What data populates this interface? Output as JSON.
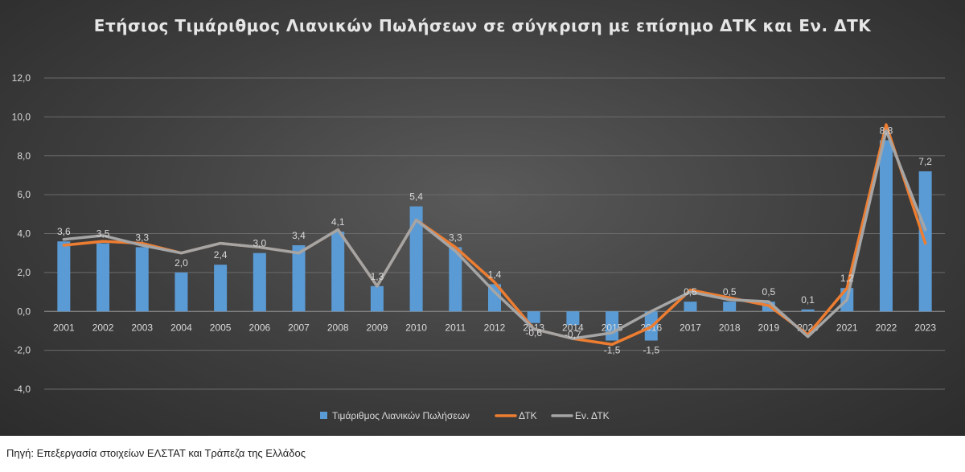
{
  "chart_data": {
    "type": "bar",
    "title": "Ετήσιος Τιμάριθμος Λιανικών Πωλήσεων σε σύγκριση με επίσημο ΔΤΚ και Εν. ΔΤΚ",
    "categories": [
      "2001",
      "2002",
      "2003",
      "2004",
      "2005",
      "2006",
      "2007",
      "2008",
      "2009",
      "2010",
      "2011",
      "2012",
      "2013",
      "2014",
      "2015",
      "2016",
      "2017",
      "2018",
      "2019",
      "2020",
      "2021",
      "2022",
      "2023"
    ],
    "ylim": [
      -4,
      12
    ],
    "yticks": [
      "-4,0",
      "-2,0",
      "0,0",
      "2,0",
      "4,0",
      "6,0",
      "8,0",
      "10,0",
      "12,0"
    ],
    "grid": true,
    "legend_position": "bottom",
    "series": [
      {
        "name": "Τιμάριθμος Λιανικών Πωλήσεων",
        "type": "bar",
        "color": "#5b9bd5",
        "values": [
          3.6,
          3.5,
          3.3,
          2.0,
          2.4,
          3.0,
          3.4,
          4.1,
          1.3,
          5.4,
          3.3,
          1.4,
          -0.6,
          -0.7,
          -1.5,
          -1.5,
          0.5,
          0.5,
          0.5,
          0.1,
          1.2,
          8.8,
          7.2
        ],
        "labels": [
          "3,6",
          "3,5",
          "3,3",
          "2,0",
          "2,4",
          "3,0",
          "3,4",
          "4,1",
          "1,3",
          "5,4",
          "3,3",
          "1,4",
          "-0,6",
          "-0,7",
          "-1,5",
          "-1,5",
          "0,5",
          "0,5",
          "0,5",
          "0,1",
          "1,2",
          "8,8",
          "7,2"
        ]
      },
      {
        "name": "ΔΤΚ",
        "type": "line",
        "color": "#ed7d31",
        "values": [
          3.4,
          3.6,
          3.5,
          3.0,
          3.5,
          3.3,
          3.0,
          4.2,
          1.3,
          4.7,
          3.3,
          1.5,
          -0.9,
          -1.4,
          -1.7,
          -0.8,
          1.1,
          0.7,
          0.3,
          -1.2,
          1.2,
          9.6,
          3.5
        ]
      },
      {
        "name": "Εν. ΔΤΚ",
        "type": "line",
        "color": "#a5a5a5",
        "values": [
          3.7,
          3.9,
          3.4,
          3.0,
          3.5,
          3.3,
          3.0,
          4.2,
          1.3,
          4.7,
          3.1,
          1.0,
          -0.9,
          -1.4,
          -1.1,
          0.0,
          1.0,
          0.6,
          0.5,
          -1.3,
          0.6,
          9.3,
          4.2
        ]
      }
    ]
  },
  "source_note": "Πηγή: Επεξεργασία στοιχείων ΕΛΣΤΑΤ και Τράπεζα της Ελλάδος"
}
